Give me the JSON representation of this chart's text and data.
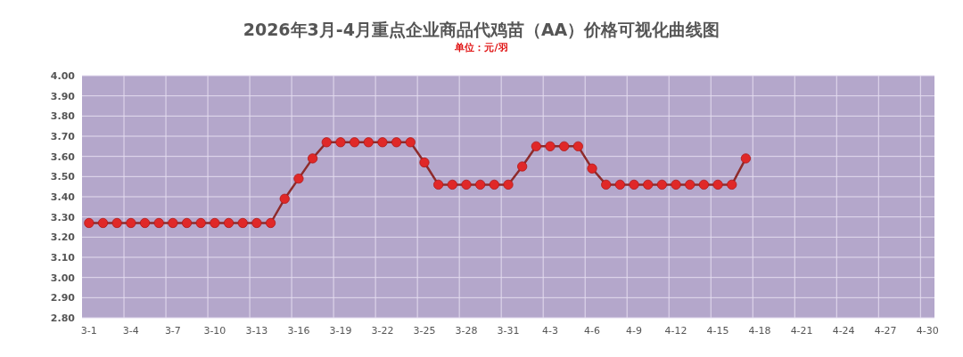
{
  "chart_data": {
    "type": "line",
    "title": "2026年3月-4月重点企业商品代鸡苗（AA）价格可视化曲线图",
    "subtitle": "单位：元/羽",
    "categories": [
      "3-1",
      null,
      null,
      "3-4",
      null,
      null,
      "3-7",
      null,
      null,
      "3-10",
      null,
      null,
      "3-13",
      null,
      null,
      "3-16",
      null,
      null,
      "3-19",
      null,
      null,
      "3-22",
      null,
      null,
      "3-25",
      null,
      null,
      "3-28",
      null,
      null,
      "3-31",
      null,
      null,
      "4-3",
      null,
      null,
      "4-6",
      null,
      null,
      "4-9",
      null,
      null,
      "4-12",
      null,
      null,
      "4-15",
      null,
      null,
      "4-18",
      null,
      null,
      "4-21",
      null,
      null,
      "4-24",
      null,
      null,
      "4-27",
      null,
      null,
      "4-30"
    ],
    "series": [
      {
        "color": "#e02828",
        "values": [
          3.27,
          3.27,
          3.27,
          3.27,
          3.27,
          3.27,
          3.27,
          3.27,
          3.27,
          3.27,
          3.27,
          3.27,
          3.27,
          3.27,
          3.39,
          3.49,
          3.59,
          3.67,
          3.67,
          3.67,
          3.67,
          3.67,
          3.67,
          3.67,
          3.57,
          3.46,
          3.46,
          3.46,
          3.46,
          3.46,
          3.46,
          3.55,
          3.65,
          3.65,
          3.65,
          3.65,
          3.54,
          3.46,
          3.46,
          3.46,
          3.46,
          3.46,
          3.46,
          3.46,
          3.46,
          3.46,
          3.46,
          3.59,
          null,
          null,
          null,
          null,
          null,
          null,
          null,
          null,
          null,
          null,
          null,
          null,
          null
        ]
      }
    ],
    "ylim": [
      2.8,
      4.0
    ],
    "yticks": [
      {
        "value": 2.8,
        "label": "2.80"
      },
      {
        "value": 2.9,
        "label": "2.90"
      },
      {
        "value": 3.0,
        "label": "3.00"
      },
      {
        "value": 3.1,
        "label": "3.10"
      },
      {
        "value": 3.2,
        "label": "3.20"
      },
      {
        "value": 3.3,
        "label": "3.30"
      },
      {
        "value": 3.4,
        "label": "3.40"
      },
      {
        "value": 3.5,
        "label": "3.50"
      },
      {
        "value": 3.6,
        "label": "3.60"
      },
      {
        "value": 3.7,
        "label": "3.70"
      },
      {
        "value": 3.8,
        "label": "3.80"
      },
      {
        "value": 3.9,
        "label": "3.90"
      },
      {
        "value": 4.0,
        "label": "4.00"
      }
    ],
    "grid": true,
    "marker": "circle",
    "line_style": "solid"
  }
}
